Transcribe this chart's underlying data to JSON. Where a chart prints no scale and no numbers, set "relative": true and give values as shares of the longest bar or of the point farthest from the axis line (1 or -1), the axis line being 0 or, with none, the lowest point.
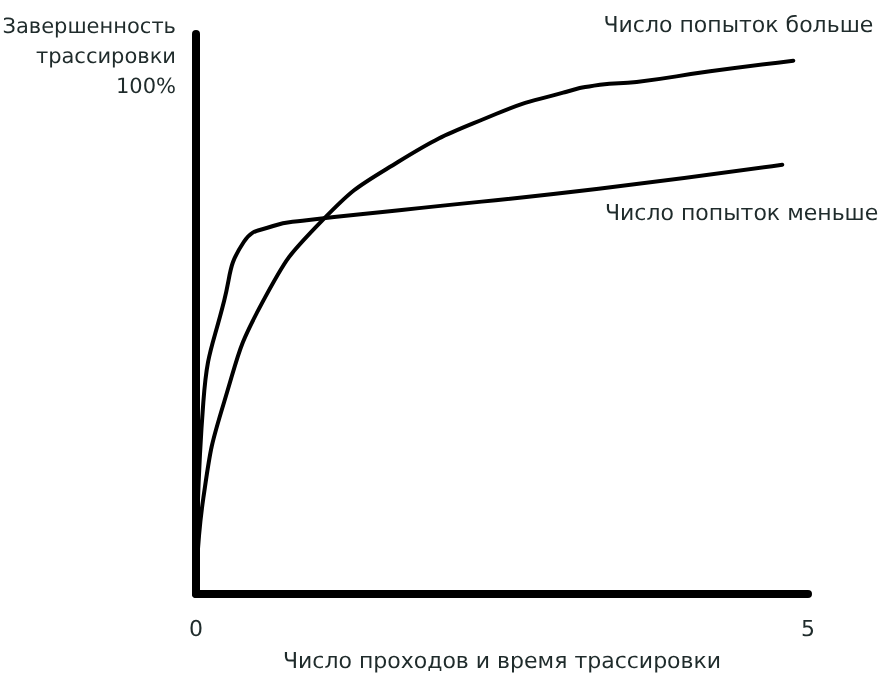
{
  "chart_data": {
    "type": "line",
    "relative": true,
    "xlabel": "Число проходов и время трассировки",
    "ylabel": "Завершенность трассировки 100%",
    "xlim": [
      0,
      5
    ],
    "xticks": [
      0,
      5
    ],
    "tick_labels": "x",
    "grid": false,
    "legend": false,
    "marker": "none",
    "line_style": "solid",
    "series": [
      {
        "name": "Число попыток больше",
        "color": "#000000",
        "x": [
          0,
          0.06,
          0.23,
          0.55,
          1.03,
          1.65,
          2.45,
          3.0,
          3.3,
          3.6,
          4.2,
          4.88
        ],
        "values": [
          0,
          0.18,
          0.36,
          0.55,
          0.7,
          0.81,
          0.9,
          0.94,
          0.955,
          0.96,
          0.98,
          1.0
        ]
      },
      {
        "name": "Число попыток меньше",
        "color": "#000000",
        "x": [
          0,
          0.06,
          0.23,
          0.39,
          0.63,
          0.87,
          1.68,
          3.29,
          4.79
        ],
        "values": [
          0,
          0.36,
          0.55,
          0.66,
          0.69,
          0.7,
          0.72,
          0.76,
          0.805
        ]
      }
    ]
  }
}
